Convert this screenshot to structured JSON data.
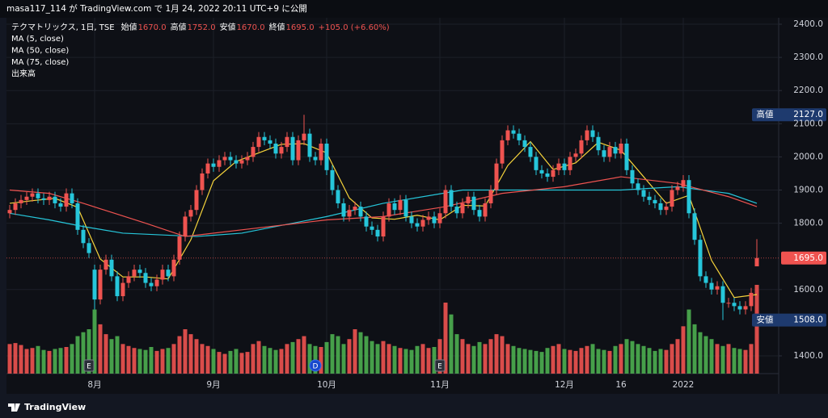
{
  "chart_data": {
    "type": "candlestick",
    "header": "masa117_114 が TradingView.com で 1月 24, 2022 20:11 UTC+9 に公開",
    "title": "テクマトリックス, 1日, TSE",
    "ohlc_legend": [
      {
        "label": "始値",
        "value": "1670.0"
      },
      {
        "label": "高値",
        "value": "1752.0"
      },
      {
        "label": "安値",
        "value": "1670.0"
      },
      {
        "label": "終値",
        "value": "1695.0"
      }
    ],
    "change": "+105.0 (+6.60%)",
    "volume_name": "出来高",
    "footer": "TradingView",
    "up_color": "#ef5350",
    "down_color": "#26c6da",
    "volume_up_color": "#ef5350",
    "volume_down_color": "#4caf50",
    "grid": true,
    "ylim": [
      1346.5,
      2419.5
    ],
    "yticks": [
      {
        "value": 1400,
        "label": "1400.0"
      },
      {
        "value": 1600,
        "label": "1600.0"
      },
      {
        "value": 1800,
        "label": "1800.0"
      },
      {
        "value": 1900,
        "label": "1900.0"
      },
      {
        "value": 2000,
        "label": "2000.0"
      },
      {
        "value": 2100,
        "label": "2100.0"
      },
      {
        "value": 2200,
        "label": "2200.0"
      },
      {
        "value": 2300,
        "label": "2300.0"
      },
      {
        "value": 2400,
        "label": "2400.0"
      }
    ],
    "xticks": [
      {
        "value": 15,
        "label": "8月"
      },
      {
        "value": 36,
        "label": "9月"
      },
      {
        "value": 56,
        "label": "10月"
      },
      {
        "value": 76,
        "label": "11月"
      },
      {
        "value": 98,
        "label": "12月"
      },
      {
        "value": 108,
        "label": "16"
      },
      {
        "value": 119,
        "label": "2022"
      }
    ],
    "events": [
      {
        "index": 14,
        "label": "E"
      },
      {
        "index": 54,
        "label": "D"
      },
      {
        "index": 76,
        "label": "E"
      }
    ],
    "badges": [
      {
        "name": "高値",
        "value": 2127,
        "text": "2127.0",
        "color": "#1e3a6e"
      },
      {
        "value": 1695,
        "text": "1695.0",
        "color": "#ef5350"
      },
      {
        "name": "安値",
        "value": 1508,
        "text": "1508.0",
        "color": "#1e3a6e"
      }
    ],
    "open": [
      1830,
      1840,
      1860,
      1870,
      1880,
      1890,
      1875,
      1870,
      1880,
      1860,
      1850,
      1890,
      1860,
      1780,
      1740,
      1660,
      1570,
      1660,
      1690,
      1640,
      1580,
      1620,
      1640,
      1660,
      1650,
      1620,
      1610,
      1630,
      1660,
      1640,
      1690,
      1760,
      1820,
      1840,
      1900,
      1950,
      1980,
      1970,
      1990,
      2000,
      1990,
      1980,
      1990,
      2000,
      2030,
      2060,
      2050,
      2040,
      2010,
      2030,
      2060,
      1990,
      2050,
      2070,
      2000,
      1990,
      2040,
      1960,
      1900,
      1860,
      1820,
      1840,
      1850,
      1820,
      1790,
      1780,
      1760,
      1820,
      1860,
      1840,
      1870,
      1820,
      1800,
      1790,
      1810,
      1820,
      1800,
      1830,
      1900,
      1850,
      1830,
      1860,
      1880,
      1840,
      1820,
      1860,
      1900,
      1980,
      2050,
      2080,
      2070,
      2050,
      2030,
      2000,
      1960,
      1950,
      1940,
      1960,
      1980,
      1960,
      2000,
      2010,
      2050,
      2080,
      2060,
      2020,
      2000,
      2030,
      2010,
      2040,
      1960,
      1920,
      1900,
      1880,
      1870,
      1860,
      1840,
      1850,
      1900,
      1910,
      1930,
      1830,
      1750,
      1640,
      1620,
      1600,
      1610,
      1560,
      1560,
      1550,
      1540,
      1550,
      1670
    ],
    "high": [
      1855,
      1875,
      1885,
      1895,
      1905,
      1905,
      1890,
      1895,
      1895,
      1875,
      1905,
      1905,
      1875,
      1795,
      1755,
      1675,
      1675,
      1705,
      1705,
      1655,
      1635,
      1655,
      1675,
      1675,
      1665,
      1635,
      1645,
      1675,
      1675,
      1705,
      1775,
      1835,
      1855,
      1915,
      1965,
      1995,
      1995,
      2005,
      2015,
      2015,
      2005,
      2005,
      2015,
      2045,
      2075,
      2075,
      2065,
      2055,
      2045,
      2075,
      2075,
      2065,
      2127,
      2085,
      2015,
      2055,
      2055,
      1975,
      1915,
      1875,
      1855,
      1865,
      1865,
      1835,
      1805,
      1795,
      1835,
      1875,
      1875,
      1885,
      1885,
      1835,
      1815,
      1825,
      1835,
      1835,
      1845,
      1915,
      1915,
      1865,
      1875,
      1895,
      1895,
      1855,
      1875,
      1915,
      1995,
      2065,
      2095,
      2095,
      2085,
      2065,
      2045,
      2015,
      1975,
      1965,
      1975,
      1995,
      1995,
      2015,
      2025,
      2065,
      2095,
      2095,
      2075,
      2035,
      2045,
      2045,
      2055,
      2055,
      1975,
      1935,
      1915,
      1895,
      1885,
      1875,
      1865,
      1915,
      1925,
      1945,
      1945,
      1845,
      1765,
      1655,
      1635,
      1625,
      1625,
      1575,
      1575,
      1565,
      1565,
      1605,
      1752
    ],
    "low": [
      1815,
      1825,
      1845,
      1855,
      1865,
      1860,
      1855,
      1855,
      1845,
      1835,
      1835,
      1845,
      1765,
      1725,
      1695,
      1540,
      1555,
      1645,
      1625,
      1565,
      1565,
      1605,
      1625,
      1635,
      1605,
      1595,
      1595,
      1615,
      1625,
      1625,
      1675,
      1745,
      1805,
      1825,
      1885,
      1935,
      1955,
      1955,
      1975,
      1975,
      1965,
      1965,
      1975,
      1985,
      2015,
      2035,
      2025,
      1995,
      1995,
      2015,
      1975,
      1975,
      2035,
      1985,
      1975,
      1975,
      1945,
      1885,
      1845,
      1805,
      1805,
      1825,
      1805,
      1775,
      1765,
      1745,
      1745,
      1805,
      1825,
      1825,
      1805,
      1785,
      1775,
      1775,
      1795,
      1785,
      1785,
      1815,
      1835,
      1815,
      1815,
      1845,
      1825,
      1805,
      1805,
      1845,
      1885,
      1965,
      2035,
      2055,
      2035,
      2015,
      1985,
      1945,
      1935,
      1925,
      1925,
      1945,
      1945,
      1945,
      1985,
      1995,
      2035,
      2045,
      2005,
      1985,
      1985,
      1995,
      1995,
      1945,
      1905,
      1885,
      1865,
      1855,
      1845,
      1825,
      1825,
      1835,
      1885,
      1895,
      1815,
      1735,
      1625,
      1605,
      1585,
      1585,
      1508,
      1545,
      1535,
      1525,
      1525,
      1535,
      1670
    ],
    "close": [
      1840,
      1860,
      1870,
      1880,
      1890,
      1875,
      1870,
      1880,
      1860,
      1850,
      1890,
      1860,
      1780,
      1740,
      1710,
      1570,
      1660,
      1690,
      1640,
      1580,
      1620,
      1640,
      1660,
      1650,
      1620,
      1610,
      1630,
      1660,
      1640,
      1690,
      1760,
      1820,
      1840,
      1900,
      1950,
      1980,
      1970,
      1990,
      2000,
      1990,
      1980,
      1990,
      2000,
      2030,
      2060,
      2050,
      2040,
      2010,
      2030,
      2060,
      1990,
      2050,
      2070,
      2000,
      1990,
      2040,
      1960,
      1900,
      1860,
      1820,
      1840,
      1850,
      1820,
      1790,
      1780,
      1760,
      1820,
      1860,
      1840,
      1870,
      1820,
      1800,
      1790,
      1810,
      1820,
      1800,
      1830,
      1900,
      1850,
      1830,
      1860,
      1880,
      1840,
      1820,
      1860,
      1900,
      1980,
      2050,
      2080,
      2070,
      2050,
      2030,
      2000,
      1960,
      1950,
      1940,
      1960,
      1980,
      1960,
      2000,
      2010,
      2050,
      2080,
      2060,
      2020,
      2000,
      2030,
      2010,
      2040,
      1960,
      1920,
      1900,
      1880,
      1870,
      1860,
      1840,
      1850,
      1900,
      1910,
      1930,
      1830,
      1750,
      1640,
      1620,
      1600,
      1610,
      1560,
      1560,
      1550,
      1540,
      1550,
      1590,
      1695
    ],
    "volume": [
      300,
      310,
      290,
      250,
      260,
      280,
      240,
      230,
      250,
      260,
      270,
      300,
      380,
      420,
      450,
      650,
      500,
      400,
      350,
      380,
      300,
      280,
      260,
      250,
      240,
      270,
      230,
      250,
      260,
      300,
      380,
      450,
      400,
      350,
      300,
      280,
      250,
      220,
      200,
      230,
      250,
      210,
      220,
      300,
      330,
      280,
      260,
      240,
      250,
      300,
      320,
      350,
      380,
      300,
      280,
      270,
      320,
      400,
      380,
      300,
      350,
      450,
      420,
      380,
      330,
      300,
      330,
      300,
      280,
      260,
      250,
      240,
      280,
      300,
      260,
      270,
      350,
      720,
      600,
      400,
      350,
      300,
      280,
      320,
      300,
      350,
      400,
      380,
      300,
      280,
      260,
      250,
      240,
      230,
      220,
      260,
      280,
      300,
      250,
      240,
      230,
      260,
      280,
      300,
      250,
      240,
      230,
      280,
      300,
      350,
      330,
      300,
      280,
      260,
      230,
      250,
      240,
      300,
      350,
      480,
      650,
      500,
      420,
      380,
      350,
      300,
      280,
      300,
      260,
      250,
      240,
      300,
      900
    ],
    "series": [
      {
        "name": "MA (5, close)",
        "color": "#f5d33b",
        "x": [
          0,
          4,
          8,
          12,
          16,
          20,
          24,
          28,
          32,
          36,
          40,
          44,
          48,
          52,
          56,
          60,
          64,
          68,
          72,
          76,
          80,
          84,
          88,
          92,
          96,
          100,
          104,
          108,
          112,
          116,
          120,
          124,
          128,
          132
        ],
        "values": [
          1860,
          1868,
          1875,
          1848,
          1692,
          1638,
          1638,
          1632,
          1750,
          1928,
          1986,
          2012,
          2038,
          2040,
          2012,
          1876,
          1816,
          1812,
          1824,
          1810,
          1854,
          1852,
          1974,
          2046,
          1962,
          1982,
          2044,
          2020,
          1940,
          1860,
          1884,
          1688,
          1576,
          1585
        ]
      },
      {
        "name": "MA (50, close)",
        "color": "#26c6da",
        "x": [
          0,
          7,
          13,
          20,
          33,
          41,
          56,
          66,
          80,
          93,
          108,
          118,
          127,
          132
        ],
        "values": [
          1830,
          1810,
          1790,
          1770,
          1760,
          1770,
          1820,
          1860,
          1900,
          1900,
          1900,
          1910,
          1890,
          1860
        ]
      },
      {
        "name": "MA (75, close)",
        "color": "#ef5350",
        "x": [
          0,
          7,
          13,
          24,
          31,
          41,
          56,
          66,
          77,
          87,
          98,
          108,
          118,
          127,
          132
        ],
        "values": [
          1900,
          1890,
          1860,
          1800,
          1760,
          1780,
          1810,
          1820,
          1850,
          1890,
          1910,
          1940,
          1920,
          1880,
          1850
        ]
      }
    ]
  }
}
